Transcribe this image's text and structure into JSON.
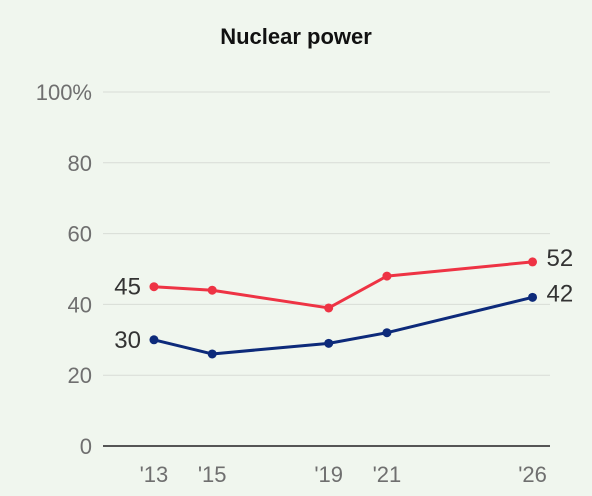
{
  "chart_data": {
    "type": "line",
    "title": "Nuclear power",
    "x": [
      "'13",
      "'15",
      "'19",
      "'21",
      "'26"
    ],
    "x_positions": [
      2013,
      2015,
      2019,
      2021,
      2026
    ],
    "ylim": [
      0,
      100
    ],
    "y_ticks": [
      0,
      20,
      40,
      60,
      80,
      100
    ],
    "y_tick_labels": [
      "0",
      "20",
      "40",
      "60",
      "80",
      "100%"
    ],
    "grid": true,
    "series": [
      {
        "values": [
          45,
          44,
          39,
          48,
          52
        ],
        "color": "#ee3344",
        "start_label": "45",
        "end_label": "52"
      },
      {
        "values": [
          30,
          26,
          29,
          32,
          42
        ],
        "color": "#0d2a7a",
        "start_label": "30",
        "end_label": "42"
      }
    ]
  }
}
